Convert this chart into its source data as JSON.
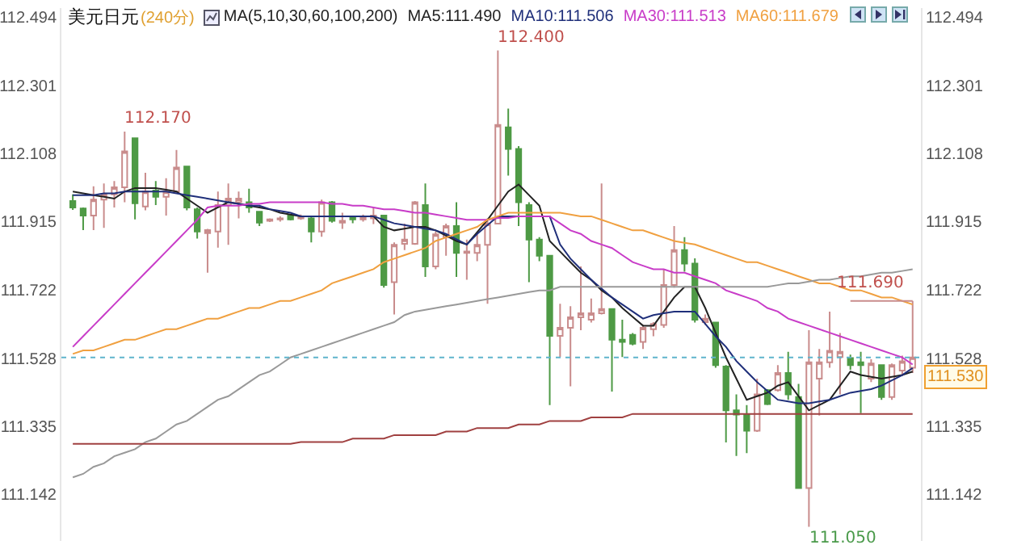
{
  "chart_data": {
    "type": "candlestick",
    "title": "美元日元",
    "subtitle": "(240分)",
    "annotations": [
      "MA(5,10,30,60,100,200)",
      "112.170",
      "112.400",
      "111.050",
      "111.690"
    ],
    "categories": [
      null,
      null,
      null,
      null,
      null,
      null,
      null,
      null,
      null,
      null,
      null,
      null,
      null,
      null,
      null,
      null,
      null,
      null,
      null,
      null,
      null,
      null,
      null,
      null,
      null,
      null,
      null,
      null,
      null,
      null,
      null,
      null,
      null,
      null,
      null,
      null,
      null,
      null,
      null,
      null,
      null,
      null,
      null,
      null,
      null,
      null,
      null,
      null,
      null,
      null,
      null,
      null,
      null,
      null,
      null,
      null,
      null,
      null,
      null,
      null,
      null,
      null,
      null,
      null,
      null,
      null,
      null,
      null,
      null,
      null,
      null,
      null,
      null,
      null,
      null,
      null,
      null,
      null,
      null,
      null,
      null,
      null
    ],
    "colors": [
      "#4e9a45",
      "#4e9a45",
      "#c98c8c",
      "#c98c8c",
      "#c98c8c",
      "#c98c8c",
      "#4e9a45",
      "#c98c8c",
      "#4e9a45",
      "#c98c8c",
      "#c98c8c",
      "#4e9a45",
      "#4e9a45",
      "#c98c8c",
      "#c98c8c",
      "#c98c8c",
      "#c98c8c",
      "#4e9a45",
      "#4e9a45",
      "#c98c8c",
      "#c98c8c",
      "#4e9a45",
      "#c98c8c",
      "#4e9a45",
      "#c98c8c",
      "#4e9a45",
      "#c98c8c",
      "#4e9a45",
      "#c98c8c",
      "#c98c8c",
      "#4e9a45",
      "#c98c8c",
      "#c98c8c",
      "#c98c8c",
      "#4e9a45",
      "#c98c8c",
      "#c98c8c",
      "#4e9a45",
      "#c98c8c",
      "#c98c8c",
      "#c98c8c",
      "#c98c8c",
      "#4e9a45",
      "#4e9a45",
      "#4e9a45",
      "#4e9a45",
      "#4e9a45",
      "#c98c8c",
      "#c98c8c",
      "#c98c8c",
      "#c98c8c",
      "#c98c8c",
      "#4e9a45",
      "#4e9a45",
      "#4e9a45",
      "#c98c8c",
      "#c98c8c",
      "#c98c8c",
      "#c98c8c",
      "#4e9a45",
      "#4e9a45",
      "#c98c8c",
      "#4e9a45",
      "#4e9a45",
      "#4e9a45",
      "#4e9a45",
      "#c98c8c",
      "#4e9a45",
      "#c98c8c",
      "#4e9a45",
      "#4e9a45",
      "#c98c8c",
      "#c98c8c",
      "#c98c8c",
      "#c98c8c",
      "#4e9a45",
      "#4e9a45",
      "#c98c8c",
      "#4e9a45",
      "#c98c8c",
      "#c98c8c",
      "#c98c8c"
    ],
    "ohlc": [
      [
        111.973,
        111.992,
        111.948,
        111.955
      ],
      [
        111.952,
        111.955,
        111.891,
        111.932
      ],
      [
        111.932,
        112.015,
        111.891,
        111.977
      ],
      [
        111.977,
        112.023,
        111.897,
        111.992
      ],
      [
        111.992,
        112.03,
        111.955,
        112.012
      ],
      [
        112.012,
        112.17,
        111.97,
        112.114
      ],
      [
        112.151,
        112.151,
        111.921,
        111.967
      ],
      [
        111.958,
        112.053,
        111.947,
        112.0
      ],
      [
        112.003,
        112.03,
        111.962,
        111.985
      ],
      [
        111.985,
        112.038,
        111.932,
        112.0
      ],
      [
        112.0,
        112.118,
        111.994,
        112.068
      ],
      [
        112.071,
        112.071,
        111.947,
        111.955
      ],
      [
        111.95,
        111.955,
        111.867,
        111.887
      ],
      [
        111.882,
        111.894,
        111.77,
        111.891
      ],
      [
        111.887,
        112.0,
        111.841,
        111.962
      ],
      [
        111.962,
        112.023,
        111.849,
        111.98
      ],
      [
        111.97,
        112.0,
        111.924,
        111.98
      ],
      [
        111.97,
        112.008,
        111.94,
        111.955
      ],
      [
        111.943,
        111.943,
        111.902,
        111.912
      ],
      [
        111.917,
        111.924,
        111.914,
        111.921
      ],
      [
        111.921,
        111.93,
        111.915,
        111.924
      ],
      [
        111.932,
        111.935,
        111.918,
        111.921
      ],
      [
        111.924,
        111.935,
        111.92,
        111.93
      ],
      [
        111.924,
        111.932,
        111.856,
        111.887
      ],
      [
        111.887,
        111.977,
        111.872,
        111.97
      ],
      [
        111.97,
        111.973,
        111.912,
        111.917
      ],
      [
        111.912,
        111.94,
        111.894,
        111.917
      ],
      [
        111.926,
        111.93,
        111.91,
        111.921
      ],
      [
        111.921,
        111.935,
        111.915,
        111.927
      ],
      [
        111.924,
        111.954,
        111.908,
        111.932
      ],
      [
        111.932,
        111.932,
        111.728,
        111.735
      ],
      [
        111.743,
        111.856,
        111.652,
        111.849
      ],
      [
        111.852,
        111.909,
        111.834,
        111.864
      ],
      [
        111.852,
        111.973,
        111.849,
        111.97
      ],
      [
        111.962,
        112.023,
        111.758,
        111.788
      ],
      [
        111.788,
        111.887,
        111.78,
        111.879
      ],
      [
        111.871,
        111.909,
        111.818,
        111.902
      ],
      [
        111.902,
        111.97,
        111.758,
        111.826
      ],
      [
        111.826,
        111.864,
        111.75,
        111.83
      ],
      [
        111.826,
        111.879,
        111.803,
        111.849
      ],
      [
        111.849,
        111.924,
        111.682,
        111.909
      ],
      [
        111.909,
        112.4,
        111.909,
        112.189
      ],
      [
        112.182,
        112.235,
        112.045,
        112.121
      ],
      [
        112.121,
        112.129,
        111.902,
        111.97
      ],
      [
        111.962,
        111.97,
        111.743,
        111.864
      ],
      [
        111.864,
        111.871,
        111.803,
        111.818
      ],
      [
        111.818,
        111.818,
        111.395,
        111.591
      ],
      [
        111.591,
        111.682,
        111.531,
        111.614
      ],
      [
        111.614,
        111.675,
        111.448,
        111.644
      ],
      [
        111.644,
        111.788,
        111.607,
        111.655
      ],
      [
        111.637,
        111.697,
        111.629,
        111.655
      ],
      [
        111.655,
        112.023,
        111.652,
        111.667
      ],
      [
        111.667,
        111.667,
        111.433,
        111.58
      ],
      [
        111.58,
        111.637,
        111.531,
        111.574
      ],
      [
        111.594,
        111.599,
        111.564,
        111.569
      ],
      [
        111.574,
        111.622,
        111.554,
        111.614
      ],
      [
        111.61,
        111.63,
        111.59,
        111.625
      ],
      [
        111.622,
        111.781,
        111.614,
        111.735
      ],
      [
        111.735,
        111.902,
        111.728,
        111.834
      ],
      [
        111.834,
        111.871,
        111.773,
        111.796
      ],
      [
        111.796,
        111.811,
        111.629,
        111.637
      ],
      [
        111.63,
        111.652,
        111.622,
        111.64
      ],
      [
        111.629,
        111.629,
        111.501,
        111.508
      ],
      [
        111.504,
        111.508,
        111.289,
        111.38
      ],
      [
        111.38,
        111.425,
        111.251,
        111.368
      ],
      [
        111.368,
        111.395,
        111.259,
        111.322
      ],
      [
        111.322,
        111.47,
        111.319,
        111.425
      ],
      [
        111.437,
        111.44,
        111.395,
        111.398
      ],
      [
        111.437,
        111.508,
        111.433,
        111.486
      ],
      [
        111.486,
        111.546,
        111.41,
        111.425
      ],
      [
        111.418,
        111.455,
        111.16,
        111.16
      ],
      [
        111.16,
        111.607,
        111.05,
        111.516
      ],
      [
        111.47,
        111.554,
        111.365,
        111.516
      ],
      [
        111.516,
        111.66,
        111.501,
        111.549
      ],
      [
        111.531,
        111.599,
        111.425,
        111.546
      ],
      [
        111.528,
        111.538,
        111.495,
        111.508
      ],
      [
        111.516,
        111.546,
        111.372,
        111.508
      ],
      [
        111.47,
        111.525,
        111.46,
        111.513
      ],
      [
        111.508,
        111.508,
        111.41,
        111.418
      ],
      [
        111.418,
        111.513,
        111.41,
        111.508
      ],
      [
        111.493,
        111.535,
        111.478,
        111.519
      ],
      [
        111.501,
        111.69,
        111.486,
        111.53
      ]
    ],
    "series": [
      {
        "type": "line",
        "name": "MA5:111.490",
        "color": "#222222",
        "values": [
          112.0,
          111.995,
          111.99,
          111.985,
          111.98,
          112.0,
          112.01,
          112.01,
          112.01,
          112.005,
          112.0,
          111.98,
          111.96,
          111.94,
          111.955,
          111.97,
          111.965,
          111.96,
          111.955,
          111.95,
          111.94,
          111.935,
          111.93,
          111.93,
          111.93,
          111.93,
          111.93,
          111.93,
          111.93,
          111.93,
          111.9,
          111.89,
          111.895,
          111.9,
          111.9,
          111.89,
          111.875,
          111.86,
          111.85,
          111.885,
          111.92,
          111.96,
          112.0,
          112.02,
          111.99,
          111.96,
          111.86,
          111.83,
          111.8,
          111.77,
          111.75,
          111.72,
          111.7,
          111.67,
          111.645,
          111.62,
          111.62,
          111.66,
          111.7,
          111.73,
          111.73,
          111.67,
          111.6,
          111.53,
          111.47,
          111.41,
          111.42,
          111.43,
          111.45,
          111.46,
          111.42,
          111.38,
          111.395,
          111.41,
          111.45,
          111.49,
          111.48,
          111.475,
          111.47,
          111.475,
          111.48,
          111.49
        ]
      },
      {
        "type": "line",
        "name": "MA10:111.506",
        "color": "#1f2f7a",
        "values": [
          111.99,
          111.99,
          111.99,
          111.995,
          111.995,
          112.0,
          112.0,
          112.0,
          112.0,
          112.0,
          111.995,
          111.99,
          111.985,
          111.98,
          111.975,
          111.97,
          111.965,
          111.96,
          111.96,
          111.95,
          111.945,
          111.94,
          111.93,
          111.93,
          111.93,
          111.93,
          111.93,
          111.93,
          111.93,
          111.93,
          111.92,
          111.91,
          111.905,
          111.9,
          111.895,
          111.89,
          111.88,
          111.865,
          111.85,
          111.88,
          111.905,
          111.93,
          111.93,
          111.93,
          111.93,
          111.93,
          111.93,
          111.85,
          111.81,
          111.78,
          111.75,
          111.725,
          111.7,
          111.68,
          111.66,
          111.64,
          111.65,
          111.655,
          111.66,
          111.66,
          111.66,
          111.625,
          111.59,
          111.56,
          111.52,
          111.49,
          111.46,
          111.435,
          111.41,
          111.405,
          111.4,
          111.4,
          111.405,
          111.41,
          111.42,
          111.43,
          111.435,
          111.44,
          111.45,
          111.465,
          111.48,
          111.5
        ]
      },
      {
        "type": "line",
        "name": "MA30:111.513",
        "color": "#c83cc8",
        "values": [
          111.56,
          111.59,
          111.62,
          111.65,
          111.68,
          111.71,
          111.74,
          111.77,
          111.8,
          111.83,
          111.86,
          111.89,
          111.92,
          111.955,
          111.96,
          111.96,
          111.96,
          111.965,
          111.965,
          111.97,
          111.97,
          111.97,
          111.97,
          111.97,
          111.97,
          111.965,
          111.965,
          111.96,
          111.96,
          111.955,
          111.95,
          111.95,
          111.945,
          111.94,
          111.94,
          111.935,
          111.93,
          111.925,
          111.92,
          111.92,
          111.92,
          111.925,
          111.925,
          111.93,
          111.93,
          111.93,
          111.93,
          111.91,
          111.89,
          111.88,
          111.86,
          111.85,
          111.84,
          111.82,
          111.8,
          111.79,
          111.78,
          111.78,
          111.77,
          111.77,
          111.76,
          111.75,
          111.74,
          111.72,
          111.71,
          111.7,
          111.69,
          111.67,
          111.66,
          111.64,
          111.63,
          111.62,
          111.61,
          111.6,
          111.59,
          111.58,
          111.57,
          111.56,
          111.55,
          111.54,
          111.53,
          111.51
        ]
      },
      {
        "type": "line",
        "name": "MA60:111.679",
        "color": "#f0a040",
        "values": [
          111.54,
          111.55,
          111.55,
          111.56,
          111.57,
          111.58,
          111.58,
          111.59,
          111.6,
          111.61,
          111.61,
          111.62,
          111.63,
          111.64,
          111.64,
          111.65,
          111.66,
          111.67,
          111.67,
          111.68,
          111.69,
          111.69,
          111.7,
          111.71,
          111.72,
          111.74,
          111.75,
          111.76,
          111.77,
          111.78,
          111.8,
          111.81,
          111.82,
          111.83,
          111.84,
          111.86,
          111.87,
          111.88,
          111.89,
          111.9,
          111.92,
          111.93,
          111.94,
          111.94,
          111.94,
          111.94,
          111.94,
          111.94,
          111.935,
          111.93,
          111.93,
          111.92,
          111.91,
          111.9,
          111.89,
          111.89,
          111.88,
          111.87,
          111.86,
          111.855,
          111.85,
          111.84,
          111.83,
          111.82,
          111.81,
          111.8,
          111.8,
          111.79,
          111.78,
          111.77,
          111.76,
          111.75,
          111.74,
          111.74,
          111.73,
          111.72,
          111.72,
          111.71,
          111.7,
          111.7,
          111.69,
          111.68
        ]
      },
      {
        "type": "line",
        "color": "#999999",
        "values": [
          111.19,
          111.2,
          111.22,
          111.23,
          111.25,
          111.26,
          111.27,
          111.29,
          111.3,
          111.32,
          111.34,
          111.35,
          111.37,
          111.39,
          111.41,
          111.42,
          111.44,
          111.46,
          111.48,
          111.49,
          111.51,
          111.53,
          111.54,
          111.55,
          111.56,
          111.57,
          111.58,
          111.59,
          111.6,
          111.61,
          111.62,
          111.63,
          111.65,
          111.66,
          111.665,
          111.67,
          111.675,
          111.68,
          111.685,
          111.69,
          111.695,
          111.7,
          111.705,
          111.71,
          111.715,
          111.72,
          111.72,
          111.73,
          111.73,
          111.73,
          111.73,
          111.73,
          111.73,
          111.73,
          111.73,
          111.73,
          111.73,
          111.73,
          111.73,
          111.73,
          111.73,
          111.73,
          111.73,
          111.73,
          111.73,
          111.73,
          111.73,
          111.73,
          111.735,
          111.74,
          111.74,
          111.745,
          111.75,
          111.75,
          111.755,
          111.76,
          111.76,
          111.765,
          111.77,
          111.77,
          111.775,
          111.78
        ]
      },
      {
        "type": "line",
        "color": "#a04040",
        "values": [
          111.285,
          111.285,
          111.285,
          111.285,
          111.285,
          111.285,
          111.285,
          111.285,
          111.285,
          111.285,
          111.285,
          111.285,
          111.285,
          111.285,
          111.285,
          111.285,
          111.285,
          111.285,
          111.285,
          111.285,
          111.285,
          111.285,
          111.29,
          111.29,
          111.29,
          111.29,
          111.29,
          111.3,
          111.3,
          111.3,
          111.3,
          111.31,
          111.31,
          111.31,
          111.31,
          111.31,
          111.32,
          111.32,
          111.32,
          111.33,
          111.33,
          111.33,
          111.33,
          111.34,
          111.34,
          111.34,
          111.35,
          111.35,
          111.35,
          111.35,
          111.36,
          111.36,
          111.36,
          111.36,
          111.37,
          111.37,
          111.37,
          111.37,
          111.37,
          111.37,
          111.37,
          111.37,
          111.37,
          111.37,
          111.37,
          111.37,
          111.37,
          111.37,
          111.37,
          111.37,
          111.37,
          111.37,
          111.37,
          111.37,
          111.37,
          111.37,
          111.37,
          111.37,
          111.37,
          111.37,
          111.37,
          111.37
        ]
      }
    ],
    "ylim": [
      111.01,
      112.52
    ],
    "yticks": [
      111.142,
      111.335,
      111.528,
      111.722,
      111.915,
      112.108,
      112.301,
      112.494
    ],
    "y2lim": [
      111.01,
      112.52
    ],
    "y2ticks": [
      111.142,
      111.335,
      111.528,
      111.722,
      111.915,
      112.108,
      112.301,
      112.494
    ],
    "ref_lines": [
      {
        "axis": "y2",
        "value": 111.53,
        "label": "111.530",
        "color": "#5fb4cc",
        "line_style": "dotted"
      }
    ],
    "legend": "top",
    "grid": false
  }
}
